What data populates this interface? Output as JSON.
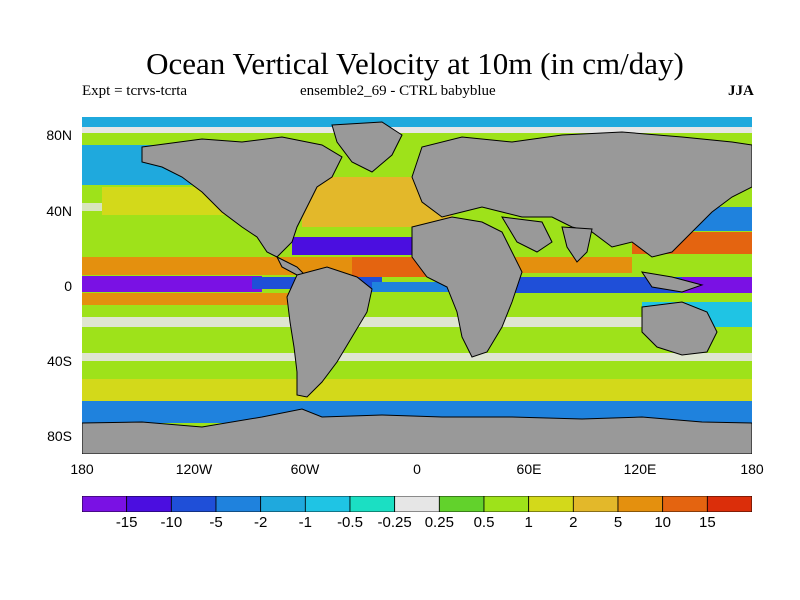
{
  "title": "Ocean Vertical Velocity at 10m (in cm/day)",
  "subtitle_left": "Expt = tcrvs-tcrta",
  "subtitle_center": "ensemble2_69 - CTRL babyblue",
  "season": "JJA",
  "y_ticks": [
    "80N",
    "40N",
    "0",
    "40S",
    "80S"
  ],
  "x_ticks": [
    "180",
    "120W",
    "60W",
    "0",
    "60E",
    "120E",
    "180"
  ],
  "map": {
    "projection": "cylindrical equidistant",
    "lon_range": [
      -180,
      180
    ],
    "lat_range": [
      -90,
      90
    ],
    "land_color": "#999999",
    "coastline_color": "#000000"
  },
  "colorbar": {
    "labels": [
      "-15",
      "-10",
      "-5",
      "-2",
      "-1",
      "-0.5",
      "-0.25",
      "0.25",
      "0.5",
      "1",
      "2",
      "5",
      "10",
      "15"
    ],
    "colors": [
      "#7a11e4",
      "#4b0ee0",
      "#1f4fd8",
      "#1f82dd",
      "#1fa9dd",
      "#1fc4e4",
      "#1bdfc3",
      "#e6e6e6",
      "#62d22c",
      "#9ee21a",
      "#d3d91a",
      "#e3b82a",
      "#e4900e",
      "#e46410",
      "#db2e0a"
    ]
  }
}
